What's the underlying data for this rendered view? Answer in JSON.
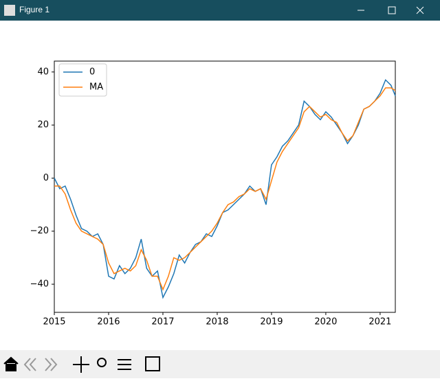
{
  "window": {
    "title": "Figure 1"
  },
  "chart_data": {
    "type": "line",
    "x": [
      2015.0,
      2015.1,
      2015.2,
      2015.3,
      2015.4,
      2015.5,
      2015.6,
      2015.7,
      2015.8,
      2015.9,
      2016.0,
      2016.1,
      2016.2,
      2016.3,
      2016.4,
      2016.5,
      2016.6,
      2016.7,
      2016.8,
      2016.9,
      2017.0,
      2017.1,
      2017.2,
      2017.3,
      2017.4,
      2017.5,
      2017.6,
      2017.7,
      2017.8,
      2017.9,
      2018.0,
      2018.1,
      2018.2,
      2018.3,
      2018.4,
      2018.5,
      2018.6,
      2018.7,
      2018.8,
      2018.9,
      2019.0,
      2019.1,
      2019.2,
      2019.3,
      2019.4,
      2019.5,
      2019.6,
      2019.7,
      2019.8,
      2019.9,
      2020.0,
      2020.1,
      2020.2,
      2020.3,
      2020.4,
      2020.5,
      2020.6,
      2020.7,
      2020.8,
      2020.9,
      2021.0,
      2021.1,
      2021.2,
      2021.28
    ],
    "series": [
      {
        "name": "0",
        "color": "#1f77b4",
        "values": [
          0,
          -4,
          -3,
          -8,
          -14,
          -19,
          -20,
          -22,
          -21,
          -25,
          -37,
          -38,
          -33,
          -36,
          -34,
          -30,
          -23,
          -34,
          -37,
          -35,
          -45,
          -41,
          -36,
          -29,
          -32,
          -28,
          -25,
          -24,
          -21,
          -22,
          -18,
          -13,
          -12,
          -10,
          -8,
          -6,
          -3,
          -5,
          -4,
          -10,
          5,
          8,
          12,
          14,
          17,
          20,
          29,
          27,
          24,
          22,
          25,
          23,
          20,
          17,
          13,
          16,
          20,
          26,
          27,
          29,
          32,
          37,
          35,
          31
        ]
      },
      {
        "name": "MA",
        "color": "#ff7f0e",
        "values": [
          -3,
          -3,
          -6,
          -12,
          -17,
          -20,
          -21,
          -22,
          -23,
          -25,
          -32,
          -36,
          -35,
          -34,
          -35,
          -33,
          -27,
          -31,
          -37,
          -37,
          -42,
          -37,
          -30,
          -31,
          -30,
          -28,
          -26,
          -24,
          -22,
          -20,
          -17,
          -13,
          -10,
          -9,
          -7,
          -6,
          -4,
          -5,
          -4,
          -8,
          -1,
          6,
          10,
          13,
          16,
          19,
          25,
          27,
          25,
          23,
          24,
          22,
          21,
          17,
          14,
          16,
          21,
          26,
          27,
          29,
          31,
          34,
          34,
          33
        ]
      }
    ],
    "xlim": [
      2015,
      2021.28
    ],
    "xticks": [
      2015,
      2016,
      2017,
      2018,
      2019,
      2020,
      2021
    ],
    "ylim": [
      -50.6,
      44.1
    ],
    "yticks": [
      {
        "value": -40,
        "label": "−40"
      },
      {
        "value": -20,
        "label": "−20"
      },
      0,
      20,
      40
    ],
    "legend": "upper left"
  }
}
